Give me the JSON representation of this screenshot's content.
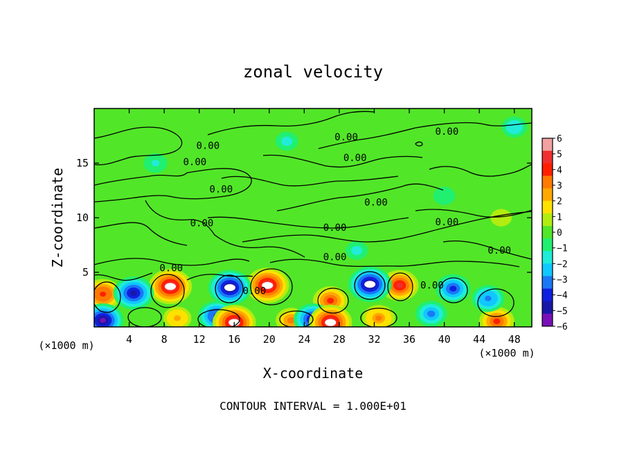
{
  "chart_data": {
    "type": "heatmap",
    "title": "zonal velocity",
    "xlabel": "X-coordinate",
    "ylabel": "Z-coordinate",
    "x_unit_left": "(×1000 m)",
    "x_unit_right": "(×1000 m)",
    "xlim": [
      0,
      50
    ],
    "ylim": [
      0,
      20
    ],
    "x_ticks": [
      "4",
      "8",
      "12",
      "16",
      "20",
      "24",
      "28",
      "32",
      "36",
      "40",
      "44",
      "48"
    ],
    "x_tick_values": [
      4,
      8,
      12,
      16,
      20,
      24,
      28,
      32,
      36,
      40,
      44,
      48
    ],
    "y_ticks": [
      "5",
      "10",
      "15"
    ],
    "y_tick_values": [
      5,
      10,
      15
    ],
    "footer": "CONTOUR INTERVAL = 1.000E+01",
    "contour_labels": [
      {
        "text": "0.00",
        "x": 13,
        "y": 16.3
      },
      {
        "text": "0.00",
        "x": 11.5,
        "y": 14.8
      },
      {
        "text": "0.00",
        "x": 14.5,
        "y": 12.3
      },
      {
        "text": "0.00",
        "x": 12.3,
        "y": 9.2
      },
      {
        "text": "0.00",
        "x": 8.8,
        "y": 5.1
      },
      {
        "text": "0.00",
        "x": 18.3,
        "y": 3
      },
      {
        "text": "0.00",
        "x": 28.8,
        "y": 17.1
      },
      {
        "text": "0.00",
        "x": 29.8,
        "y": 15.2
      },
      {
        "text": "0.00",
        "x": 32.2,
        "y": 11.1
      },
      {
        "text": "0.00",
        "x": 27.5,
        "y": 8.8
      },
      {
        "text": "0.00",
        "x": 27.5,
        "y": 6.1
      },
      {
        "text": "0.00",
        "x": 40.3,
        "y": 17.6
      },
      {
        "text": "0.00",
        "x": 40.3,
        "y": 9.3
      },
      {
        "text": "0.00",
        "x": 46.3,
        "y": 6.7
      },
      {
        "text": "0.00",
        "x": 38.6,
        "y": 3.5
      }
    ],
    "colorbar": {
      "tick_labels": [
        "6",
        "5",
        "4",
        "3",
        "2",
        "1",
        "0",
        "−1",
        "−2",
        "−3",
        "−4",
        "−5",
        "−6"
      ],
      "colors": [
        "#f2a0a0",
        "#ef3030",
        "#ff2000",
        "#ff7a00",
        "#ffa800",
        "#ffe100",
        "#b2ec10",
        "#52e628",
        "#20ef70",
        "#20ecd8",
        "#10c8ff",
        "#1a78f5",
        "#1020e0",
        "#1818a8",
        "#7a10b8"
      ]
    },
    "features": [
      {
        "x": 1.0,
        "y": 3.0,
        "v": 4.6
      },
      {
        "x": 8.7,
        "y": 3.7,
        "v": 6.0
      },
      {
        "x": 19.8,
        "y": 3.8,
        "v": 6.0
      },
      {
        "x": 27.0,
        "y": 2.4,
        "v": 4.2
      },
      {
        "x": 34.9,
        "y": 3.8,
        "v": 4.8
      },
      {
        "x": 46.0,
        "y": 0.5,
        "v": 4.2
      },
      {
        "x": 32.5,
        "y": 0.8,
        "v": 3.5
      },
      {
        "x": 22.5,
        "y": 0.6,
        "v": 3.2
      },
      {
        "x": 9.5,
        "y": 0.8,
        "v": 2.6
      },
      {
        "x": 4.5,
        "y": 3.1,
        "v": -5.4
      },
      {
        "x": 15.5,
        "y": 3.6,
        "v": -6.0
      },
      {
        "x": 31.5,
        "y": 3.9,
        "v": -6.0
      },
      {
        "x": 41.0,
        "y": 3.5,
        "v": -4.2
      },
      {
        "x": 45.0,
        "y": 2.6,
        "v": -3.6
      },
      {
        "x": 25.0,
        "y": 0.7,
        "v": -5.0
      },
      {
        "x": 1.0,
        "y": 0.6,
        "v": -5.6
      },
      {
        "x": 14.0,
        "y": 1.0,
        "v": -4.6
      },
      {
        "x": 16.0,
        "y": 0.4,
        "v": 6.0
      },
      {
        "x": 27.0,
        "y": 0.4,
        "v": 6.0
      },
      {
        "x": 38.5,
        "y": 1.2,
        "v": -3.4
      },
      {
        "x": 7.0,
        "y": 15.0,
        "v": -1.6
      },
      {
        "x": 22.0,
        "y": 17.0,
        "v": -1.4
      },
      {
        "x": 48.0,
        "y": 18.3,
        "v": -2.0
      },
      {
        "x": 40.0,
        "y": 12.0,
        "v": -1.2
      },
      {
        "x": 30.0,
        "y": 7.0,
        "v": -1.3
      },
      {
        "x": 46.5,
        "y": 10.0,
        "v": 1.0
      }
    ]
  }
}
